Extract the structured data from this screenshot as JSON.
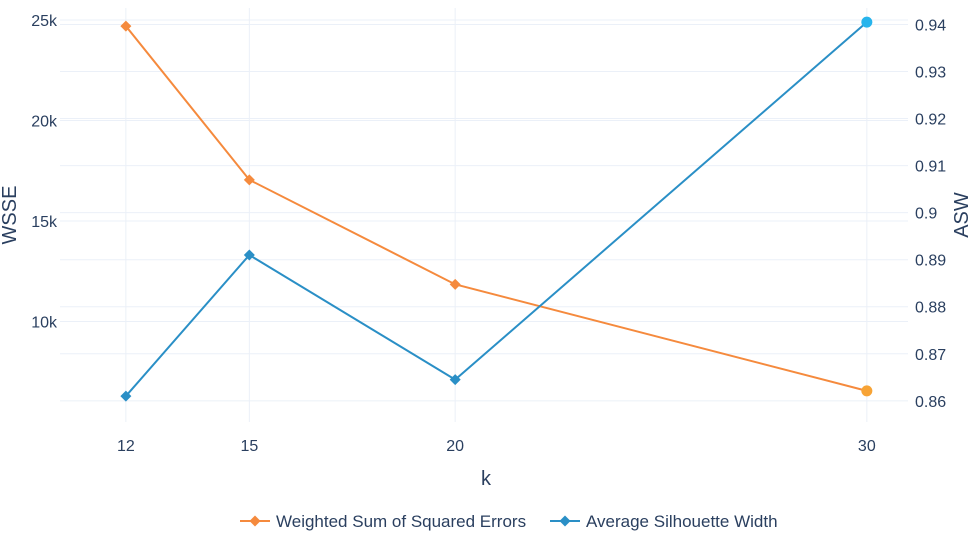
{
  "chart_data": {
    "type": "line",
    "x": [
      12,
      15,
      20,
      30
    ],
    "xlabel": "k",
    "x_ticks": [
      "12",
      "15",
      "20",
      "30"
    ],
    "y_left": {
      "label": "WSSE",
      "ticks": [
        "10k",
        "15k",
        "20k",
        "25k"
      ],
      "tick_values": [
        10000,
        15000,
        20000,
        25000
      ],
      "range": [
        5000,
        25600
      ]
    },
    "y_right": {
      "label": "ASW",
      "ticks": [
        "0.86",
        "0.87",
        "0.88",
        "0.89",
        "0.9",
        "0.91",
        "0.92",
        "0.93",
        "0.94"
      ],
      "tick_values": [
        0.86,
        0.87,
        0.88,
        0.89,
        0.9,
        0.91,
        0.92,
        0.93,
        0.94
      ],
      "range": [
        0.8555,
        0.9435
      ]
    },
    "series": [
      {
        "name": "Weighted Sum of Squared Errors",
        "axis": "left",
        "color": "#f58a3d",
        "values": [
          24700,
          17050,
          11850,
          6550
        ]
      },
      {
        "name": "Average Silhouette Width",
        "axis": "right",
        "color": "#2a8fc6",
        "values": [
          0.861,
          0.891,
          0.8645,
          0.9405
        ]
      }
    ],
    "grid": true,
    "legend_position": "bottom"
  }
}
